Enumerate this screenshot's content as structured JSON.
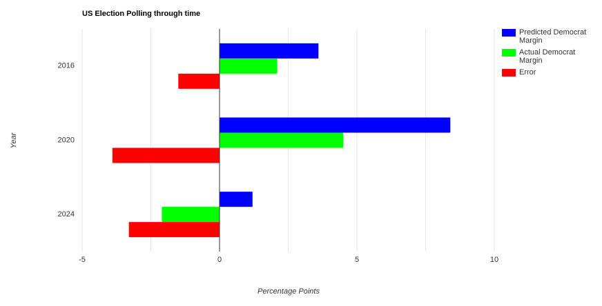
{
  "chart_data": {
    "type": "hbar",
    "title": "US Election Polling through time",
    "x_label": "Percentage Points",
    "y_label": "Year",
    "categories": [
      "2016",
      "2020",
      "2024"
    ],
    "series": [
      {
        "name": "Predicted Democrat Margin",
        "color": "#0000ff",
        "values": [
          3.6,
          8.4,
          1.2
        ]
      },
      {
        "name": "Actual Democrat Margin",
        "color": "#00ff00",
        "values": [
          2.1,
          4.5,
          -2.1
        ]
      },
      {
        "name": "Error",
        "color": "#ff0000",
        "values": [
          -1.5,
          -3.9,
          -3.3
        ]
      }
    ],
    "xlim": [
      -5,
      10
    ],
    "xticks": [
      -5,
      0,
      5,
      10
    ],
    "grid": true,
    "minor_grid": true,
    "legend": "right"
  }
}
